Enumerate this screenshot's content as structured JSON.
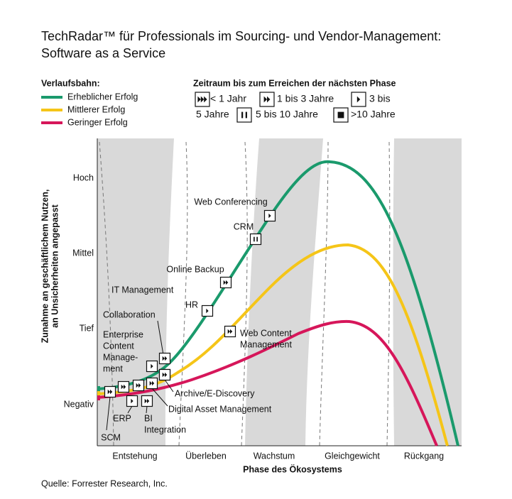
{
  "title": "TechRadar™  für Professionals im Sourcing- und Vendor-Management:",
  "subtitle": "Software as a Service",
  "trajectory_legend": {
    "title": "Verlaufsbahn:",
    "items": [
      "Erheblicher Erfolg",
      "Mittlerer Erfolg",
      "Geringer Erfolg"
    ]
  },
  "time_legend": {
    "title": "Zeitraum bis zum Erreichen der nächsten Phase",
    "items": [
      "< 1 Jahr",
      "1 bis 3 Jahre",
      [
        "3 bis",
        "5 Jahre"
      ],
      "5 bis 10 Jahre",
      ">10 Jahre"
    ]
  },
  "y_axis": {
    "title": [
      "Zunahme an geschäftlichem Nutzen,",
      "an Unsicherheiten angepasst"
    ],
    "labels": [
      "Hoch",
      "Mittel",
      "Tief",
      "Negativ"
    ]
  },
  "x_axis": {
    "title": "Phase des Ökosystems",
    "labels": [
      "Entstehung",
      "Überleben",
      "Wachstum",
      "Gleichgewicht",
      "Rückgang"
    ]
  },
  "technologies": [
    {
      "label": [
        "SCM"
      ]
    },
    {
      "label": [
        "ERP"
      ]
    },
    {
      "label": [
        "BI",
        "Integration"
      ]
    },
    {
      "label": [
        "Digital Asset Management"
      ]
    },
    {
      "label": [
        "Archive/E-Discovery"
      ]
    },
    {
      "label": [
        "Enterprise",
        "Content",
        "Manage-",
        "ment"
      ]
    },
    {
      "label": [
        "Collaboration"
      ]
    },
    {
      "label": [
        "IT Management"
      ]
    },
    {
      "label": [
        "HR"
      ]
    },
    {
      "label": [
        "Online Backup"
      ]
    },
    {
      "label": [
        "CRM"
      ]
    },
    {
      "label": [
        "Web Conferencing"
      ]
    },
    {
      "label": [
        "Web Content",
        "Management"
      ]
    }
  ],
  "source": "Quelle: Forrester Research, Inc."
}
